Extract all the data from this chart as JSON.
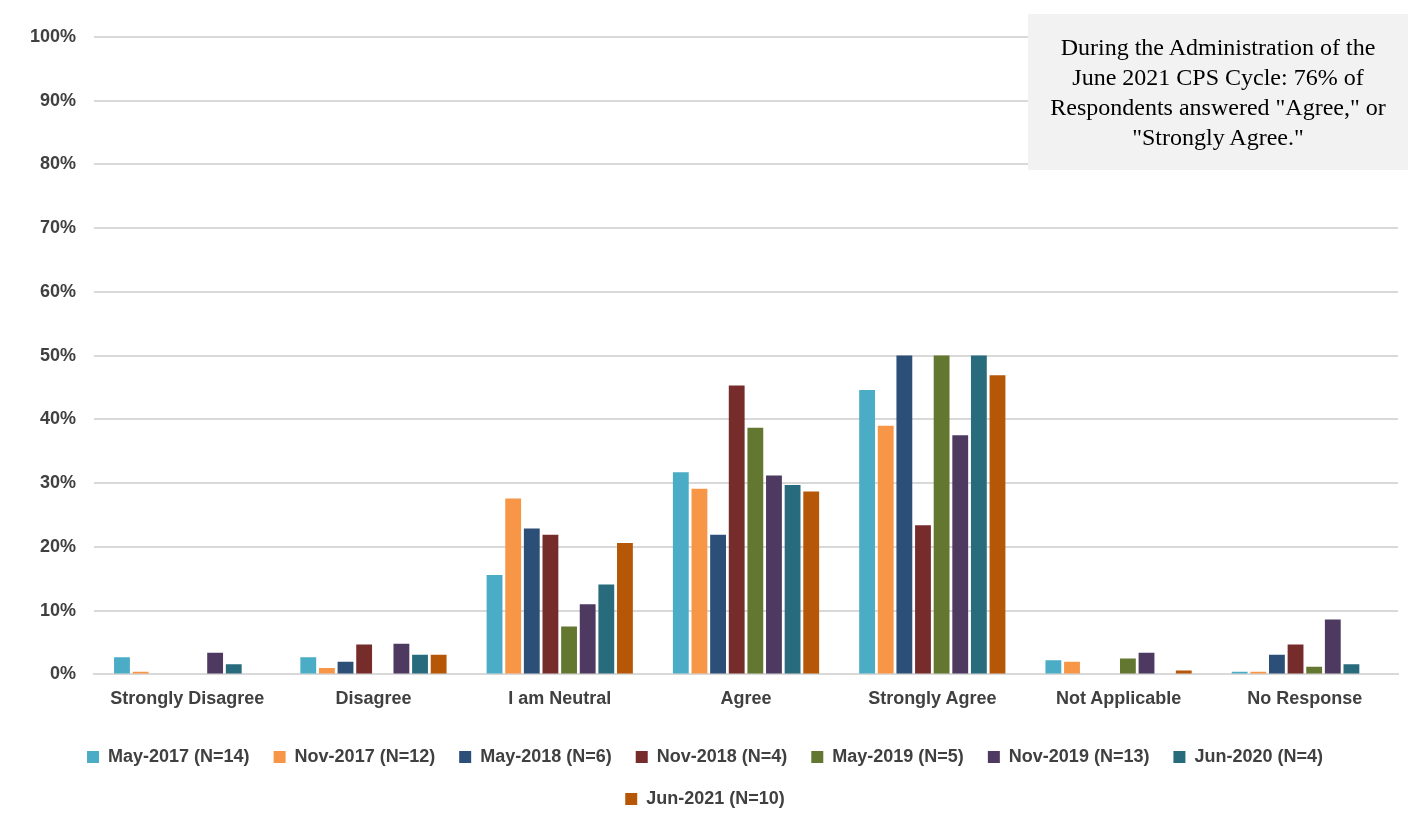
{
  "chart_data": {
    "type": "bar",
    "categories": [
      "Strongly Disagree",
      "Disagree",
      "I am Neutral",
      "Agree",
      "Strongly Agree",
      "Not Applicable",
      "No Response"
    ],
    "series": [
      {
        "name": "May-2017 (N=14)",
        "color": "#4bacc6",
        "values": [
          2.7,
          2.7,
          15.6,
          31.7,
          44.6,
          2.2,
          0.4
        ]
      },
      {
        "name": "Nov-2017 (N=12)",
        "color": "#f79646",
        "values": [
          0.4,
          1.0,
          27.6,
          29.1,
          39.0,
          2.0,
          0.4
        ]
      },
      {
        "name": "May-2018 (N=6)",
        "color": "#2c4f77",
        "values": [
          0,
          2.0,
          22.9,
          21.9,
          50.0,
          0,
          3.1
        ]
      },
      {
        "name": "Nov-2018 (N=4)",
        "color": "#772c2c",
        "values": [
          0,
          4.7,
          21.9,
          45.3,
          23.4,
          0,
          4.7
        ]
      },
      {
        "name": "May-2019 (N=5)",
        "color": "#647731",
        "values": [
          0,
          0,
          7.5,
          38.7,
          50.0,
          2.5,
          1.2
        ]
      },
      {
        "name": "Nov-2019 (N=13)",
        "color": "#4e3a60",
        "values": [
          3.4,
          4.8,
          11.0,
          31.2,
          37.5,
          3.4,
          8.6
        ]
      },
      {
        "name": "Jun-2020 (N=4)",
        "color": "#276b7c",
        "values": [
          1.6,
          3.1,
          14.1,
          29.7,
          50.0,
          0,
          1.6
        ]
      },
      {
        "name": "Jun-2021 (N=10)",
        "color": "#b65708",
        "values": [
          0,
          3.1,
          20.6,
          28.7,
          46.9,
          0.6,
          0
        ]
      }
    ],
    "ylim": [
      0,
      100
    ],
    "yticks": [
      {
        "value": 0,
        "label": "0%"
      },
      {
        "value": 10,
        "label": "10%"
      },
      {
        "value": 20,
        "label": "20%"
      },
      {
        "value": 30,
        "label": "30%"
      },
      {
        "value": 40,
        "label": "40%"
      },
      {
        "value": 50,
        "label": "50%"
      },
      {
        "value": 60,
        "label": "60%"
      },
      {
        "value": 70,
        "label": "70%"
      },
      {
        "value": 80,
        "label": "80%"
      },
      {
        "value": 90,
        "label": "90%"
      },
      {
        "value": 100,
        "label": "100%"
      }
    ],
    "grid": "y",
    "legend": "bottom",
    "annotations": [
      "During the Administration of the June 2021 CPS Cycle: 76% of Respondents answered \"Agree,\" or \"Strongly Agree.\""
    ]
  }
}
